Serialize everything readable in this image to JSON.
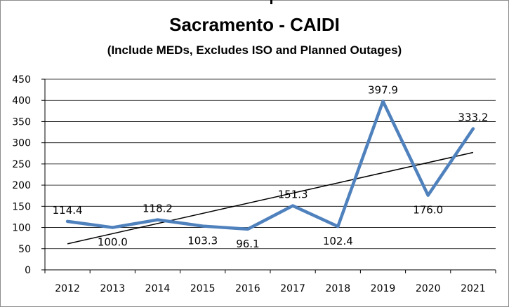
{
  "chart_data": {
    "type": "line",
    "title": "Sacramento - CAIDI",
    "subtitle": "(Include MEDs, Excludes ISO and Planned Outages)",
    "categories": [
      "2012",
      "2013",
      "2014",
      "2015",
      "2016",
      "2017",
      "2018",
      "2019",
      "2020",
      "2021"
    ],
    "series": [
      {
        "values": [
          114.4,
          100.0,
          118.2,
          103.3,
          96.1,
          151.3,
          102.4,
          397.9,
          176.0,
          333.2
        ],
        "data_labels": [
          "114.4",
          "100.0",
          "118.2",
          "103.3",
          "96.1",
          "151.3",
          "102.4",
          "397.9",
          "176.0",
          "333.2"
        ],
        "color": "#4f81bd"
      }
    ],
    "trendline": {
      "type": "linear",
      "color": "#000000"
    },
    "yticks": [
      "0",
      "50",
      "100",
      "150",
      "200",
      "250",
      "300",
      "350",
      "400",
      "450"
    ],
    "ylim": [
      0,
      450
    ],
    "xlabel": "",
    "ylabel": "",
    "grid": "horizontal",
    "legend": "none"
  }
}
